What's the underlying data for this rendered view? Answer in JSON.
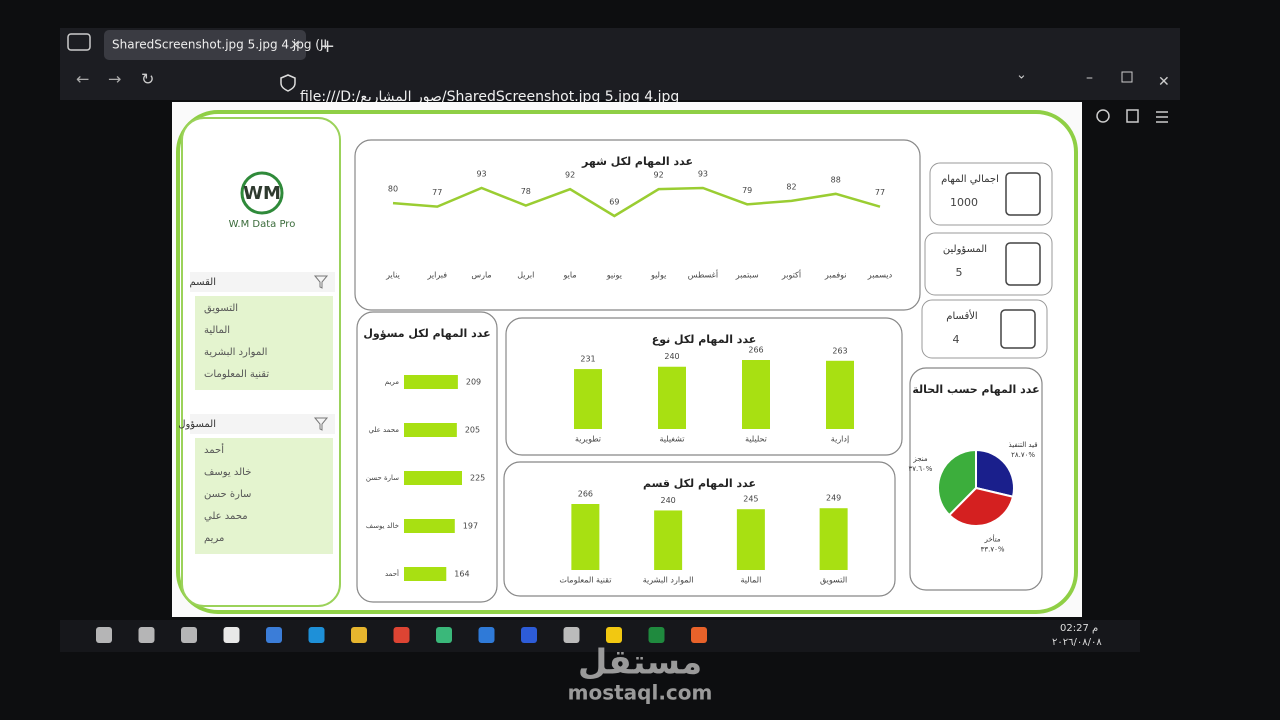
{
  "browser": {
    "tab_title": "SharedScreenshot.jpg 5.jpg 4.jpg (JI",
    "url": "file:///D:/صور المشاريع/SharedScreenshot.jpg 5.jpg 4.jpg"
  },
  "dashboard": {
    "logo": "W.M Data Pro",
    "slicers": [
      {
        "title": "القسم",
        "items": [
          "التسويق",
          "المالية",
          "الموارد البشرية",
          "تقنية المعلومات"
        ]
      },
      {
        "title": "المسؤول",
        "items": [
          "أحمد",
          "خالد يوسف",
          "سارة حسن",
          "محمد علي",
          "مريم"
        ]
      }
    ],
    "kpis": [
      {
        "label": "اجمالي المهام",
        "value": 1000
      },
      {
        "label": "المسؤولين",
        "value": 5
      },
      {
        "label": "الأقسام",
        "value": 4
      }
    ]
  },
  "chart_data": [
    {
      "type": "line",
      "title": "عدد المهام لكل شهر",
      "color": "#9acd32",
      "categories": [
        "يناير",
        "فبراير",
        "مارس",
        "ابريل",
        "مايو",
        "يونيو",
        "يوليو",
        "أغسطس",
        "سبتمبر",
        "أكتوبر",
        "نوفمبر",
        "ديسمبر"
      ],
      "values": [
        80,
        77,
        93,
        78,
        92,
        69,
        92,
        93,
        79,
        82,
        88,
        77
      ]
    },
    {
      "type": "barh",
      "title": "عدد المهام لكل مسؤول",
      "color": "#a8e012",
      "categories": [
        "مريم",
        "محمد علي",
        "سارة حسن",
        "خالد يوسف",
        "أحمد"
      ],
      "values": [
        209,
        205,
        225,
        197,
        164
      ]
    },
    {
      "type": "bar",
      "title": "عدد المهام لكل نوع",
      "color": "#a8e012",
      "categories": [
        "تطويرية",
        "تشغيلية",
        "تحليلية",
        "إدارية"
      ],
      "values": [
        231,
        240,
        266,
        263
      ]
    },
    {
      "type": "bar",
      "title": "عدد المهام لكل قسم",
      "color": "#a8e012",
      "categories": [
        "تقنية المعلومات",
        "الموارد البشرية",
        "المالية",
        "التسويق"
      ],
      "values": [
        266,
        240,
        245,
        249
      ]
    },
    {
      "type": "pie",
      "title": "عدد المهام حسب الحالة",
      "categories": [
        "قيد التنفيذ",
        "متأخر",
        "منجز"
      ],
      "values": [
        28.7,
        33.7,
        37.6
      ],
      "value_labels": [
        "٢٨.٧٠%",
        "٣٣.٧٠%",
        "٣٧.٦٠%"
      ],
      "colors": [
        "#1a1f8c",
        "#d42020",
        "#3cae3c"
      ]
    }
  ],
  "taskbar": {
    "time": "02:27 م",
    "date": "٢٠٢٦/٠٨/٠٨"
  },
  "watermark": {
    "arabic": "مستقل",
    "latin": "mostaql.com"
  }
}
